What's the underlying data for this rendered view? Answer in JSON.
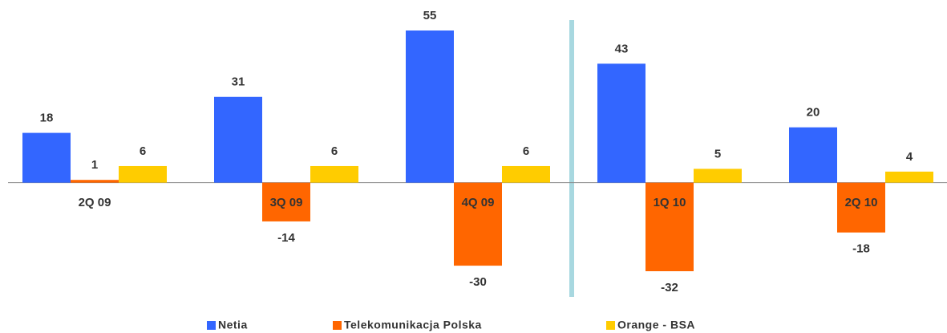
{
  "chart_data": {
    "type": "bar",
    "categories": [
      "2Q 09",
      "3Q 09",
      "4Q 09",
      "1Q 10",
      "2Q 10"
    ],
    "series": [
      {
        "name": "Netia",
        "color": "#3366ff",
        "values": [
          18,
          31,
          55,
          43,
          20
        ]
      },
      {
        "name": "Telekomunikacja Polska",
        "color": "#ff6600",
        "values": [
          1,
          -14,
          -30,
          -32,
          -18
        ]
      },
      {
        "name": "Orange - BSA",
        "color": "#ffcc00",
        "values": [
          6,
          6,
          6,
          5,
          4
        ]
      }
    ],
    "legend": "bottom"
  }
}
